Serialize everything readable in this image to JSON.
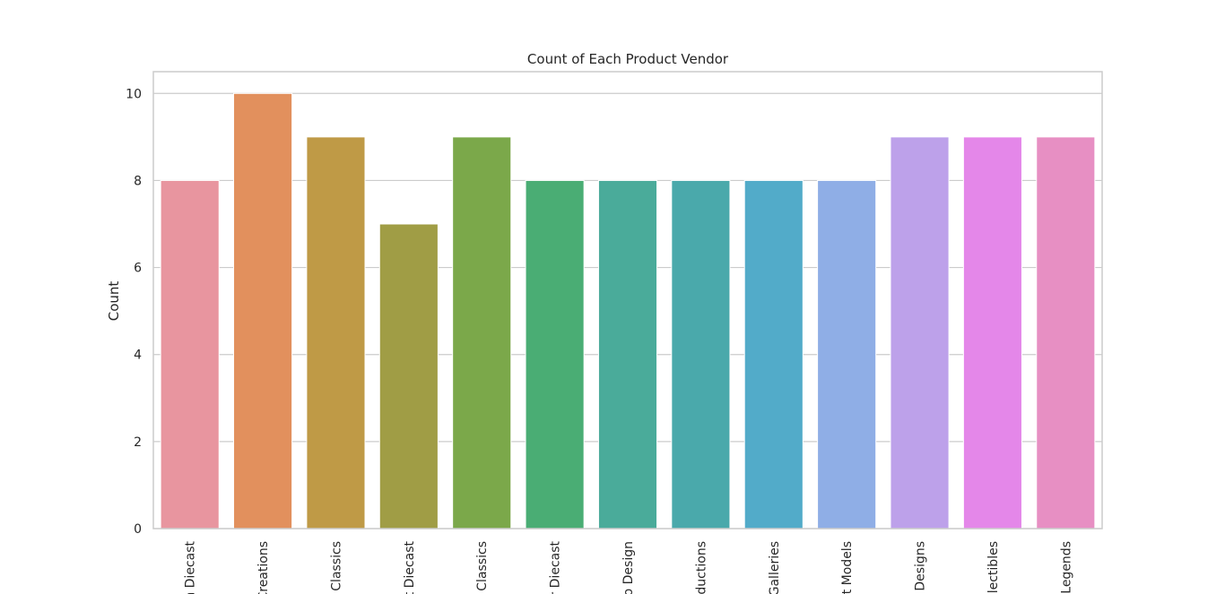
{
  "chart_data": {
    "type": "bar",
    "title": "Count of Each Product Vendor",
    "xlabel": "",
    "ylabel": "Count",
    "ylim": [
      0,
      10.5
    ],
    "yticks": [
      0,
      2,
      4,
      6,
      8,
      10
    ],
    "grid": true,
    "categories": [
      "n Diecast",
      "Creations",
      "Classics",
      "t Diecast",
      "Classics",
      "r Diecast",
      "o Design",
      "ductions",
      "Galleries",
      "t Models",
      "Designs",
      "llectibles",
      "Legends"
    ],
    "values": [
      8,
      10,
      9,
      7,
      9,
      8,
      8,
      8,
      8,
      8,
      9,
      9,
      9
    ],
    "colors": [
      "#e8959f",
      "#e2905d",
      "#bf9a46",
      "#a09d45",
      "#7ba84a",
      "#4aad74",
      "#4aab9a",
      "#4aa9ab",
      "#52abc9",
      "#8faee6",
      "#bda1ea",
      "#e487e9",
      "#e78fc3"
    ]
  }
}
